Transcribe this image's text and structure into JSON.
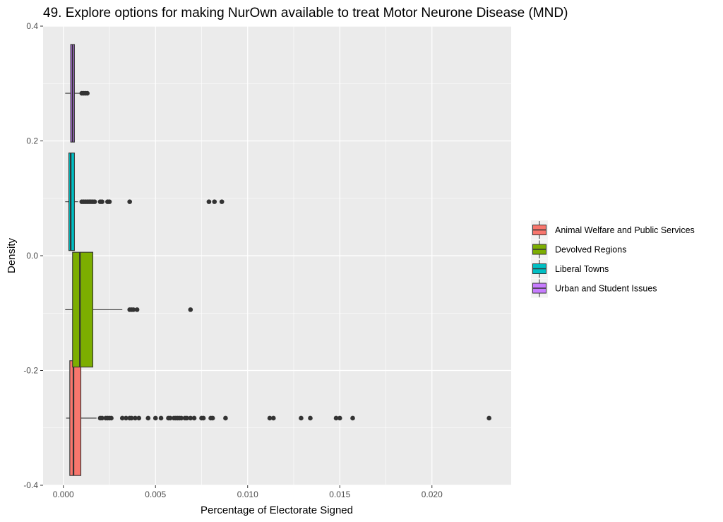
{
  "chart_data": {
    "type": "boxplot",
    "title": "49. Explore options for making NurOwn available to treat Motor Neurone Disease (MND)",
    "xlabel": "Percentage of Electorate Signed",
    "ylabel": "Density",
    "xlim": [
      -0.0011,
      0.0243
    ],
    "ylim": [
      -0.4,
      0.4
    ],
    "x_ticks": [
      0.0,
      0.005,
      0.01,
      0.015,
      0.02
    ],
    "x_tick_labels": [
      "0.000",
      "0.005",
      "0.010",
      "0.015",
      "0.020"
    ],
    "y_ticks": [
      -0.4,
      -0.2,
      0.0,
      0.2,
      0.4
    ],
    "y_tick_labels": [
      "-0.4",
      "-0.2",
      "0.0",
      "0.2",
      "0.4"
    ],
    "grid": true,
    "legend_position": "right",
    "series": [
      {
        "name": "Animal Welfare and Public Services",
        "color": "#F8766D",
        "y_center": -0.283,
        "box_half_height": 0.1,
        "whisker_low": 0.00015,
        "q1": 0.00035,
        "median": 0.00055,
        "q3": 0.00095,
        "whisker_high": 0.0018,
        "outliers": [
          0.002,
          0.0021,
          0.0023,
          0.0024,
          0.0025,
          0.0026,
          0.0032,
          0.0034,
          0.0036,
          0.0037,
          0.0039,
          0.0041,
          0.0046,
          0.005,
          0.0053,
          0.0057,
          0.0058,
          0.006,
          0.0061,
          0.0062,
          0.0063,
          0.0064,
          0.0066,
          0.0067,
          0.0069,
          0.0071,
          0.0075,
          0.0076,
          0.008,
          0.0081,
          0.0088,
          0.0112,
          0.0114,
          0.0129,
          0.0134,
          0.0148,
          0.015,
          0.0157,
          0.0231
        ]
      },
      {
        "name": "Devolved Regions",
        "color": "#7CAE00",
        "y_center": -0.094,
        "box_half_height": 0.1,
        "whisker_low": 0.0001,
        "q1": 0.0005,
        "median": 0.0009,
        "q3": 0.0016,
        "whisker_high": 0.0032,
        "outliers": [
          0.0036,
          0.0037,
          0.0038,
          0.004,
          0.0069
        ]
      },
      {
        "name": "Liberal Towns",
        "color": "#00BFC4",
        "y_center": 0.094,
        "box_half_height": 0.085,
        "whisker_low": 0.0001,
        "q1": 0.0003,
        "median": 0.0004,
        "q3": 0.0006,
        "whisker_high": 0.0008,
        "outliers": [
          0.001,
          0.0011,
          0.0012,
          0.0013,
          0.0014,
          0.0015,
          0.0016,
          0.0017,
          0.002,
          0.0021,
          0.0024,
          0.0025,
          0.0036,
          0.0079,
          0.0082,
          0.0086
        ]
      },
      {
        "name": "Urban and Student Issues",
        "color": "#C77CFF",
        "y_center": 0.283,
        "box_half_height": 0.085,
        "whisker_low": 0.0001,
        "q1": 0.0004,
        "median": 0.0005,
        "q3": 0.0006,
        "whisker_high": 0.0009,
        "outliers": [
          0.001,
          0.0011,
          0.0012,
          0.0013
        ]
      }
    ]
  }
}
